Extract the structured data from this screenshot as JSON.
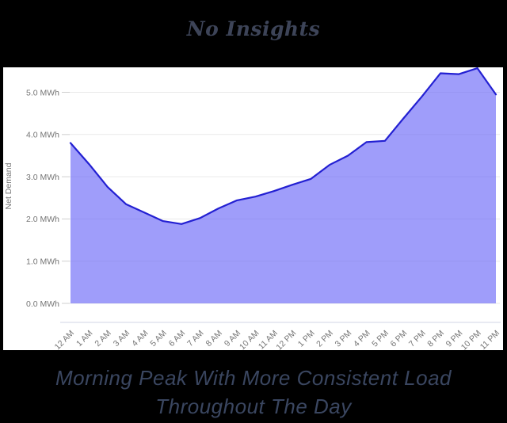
{
  "theme": {
    "background": "#000000",
    "panel_background": "#ffffff",
    "title_color": "#3d4458",
    "caption_color": "#3a4660"
  },
  "title": {
    "text": "No Insights"
  },
  "caption": {
    "line1": "Morning Peak With More Consistent Load",
    "line2": "Throughout The Day"
  },
  "chart_data": {
    "type": "area",
    "title": "No Insights",
    "xlabel": "",
    "ylabel": "Net Demand",
    "x": [
      "12 AM",
      "1 AM",
      "2 AM",
      "3 AM",
      "4 AM",
      "5 AM",
      "6 AM",
      "7 AM",
      "8 AM",
      "9 AM",
      "10 AM",
      "11 AM",
      "12 PM",
      "1 PM",
      "2 PM",
      "3 PM",
      "4 PM",
      "5 PM",
      "6 PM",
      "7 PM",
      "8 PM",
      "9 PM",
      "10 PM",
      "11 PM"
    ],
    "series": [
      {
        "name": "Net Demand",
        "unit": "MWh",
        "values": [
          3.8,
          3.3,
          2.76,
          2.35,
          2.15,
          1.95,
          1.88,
          2.02,
          2.25,
          2.44,
          2.53,
          2.66,
          2.81,
          2.95,
          3.28,
          3.5,
          3.82,
          3.85,
          4.38,
          4.9,
          5.45,
          5.43,
          5.57,
          4.95
        ]
      }
    ],
    "y_tick_values": [
      0,
      1,
      2,
      3,
      4,
      5
    ],
    "y_tick_labels": [
      "0.0 MWh",
      "1.0 MWh",
      "2.0 MWh",
      "3.0 MWh",
      "4.0 MWh",
      "5.0 MWh"
    ],
    "ylim": [
      0,
      5.6
    ],
    "grid": true,
    "legend": false,
    "x_label_rotation": -45,
    "style": {
      "area_fill": "rgba(110,107,248,0.66)",
      "line_color": "#2320d2",
      "grid_color": "#e9e9e9",
      "tick_dash_color": "#cfcfcf",
      "axis_line_color": "#dadee9",
      "label_color": "#757575"
    }
  }
}
